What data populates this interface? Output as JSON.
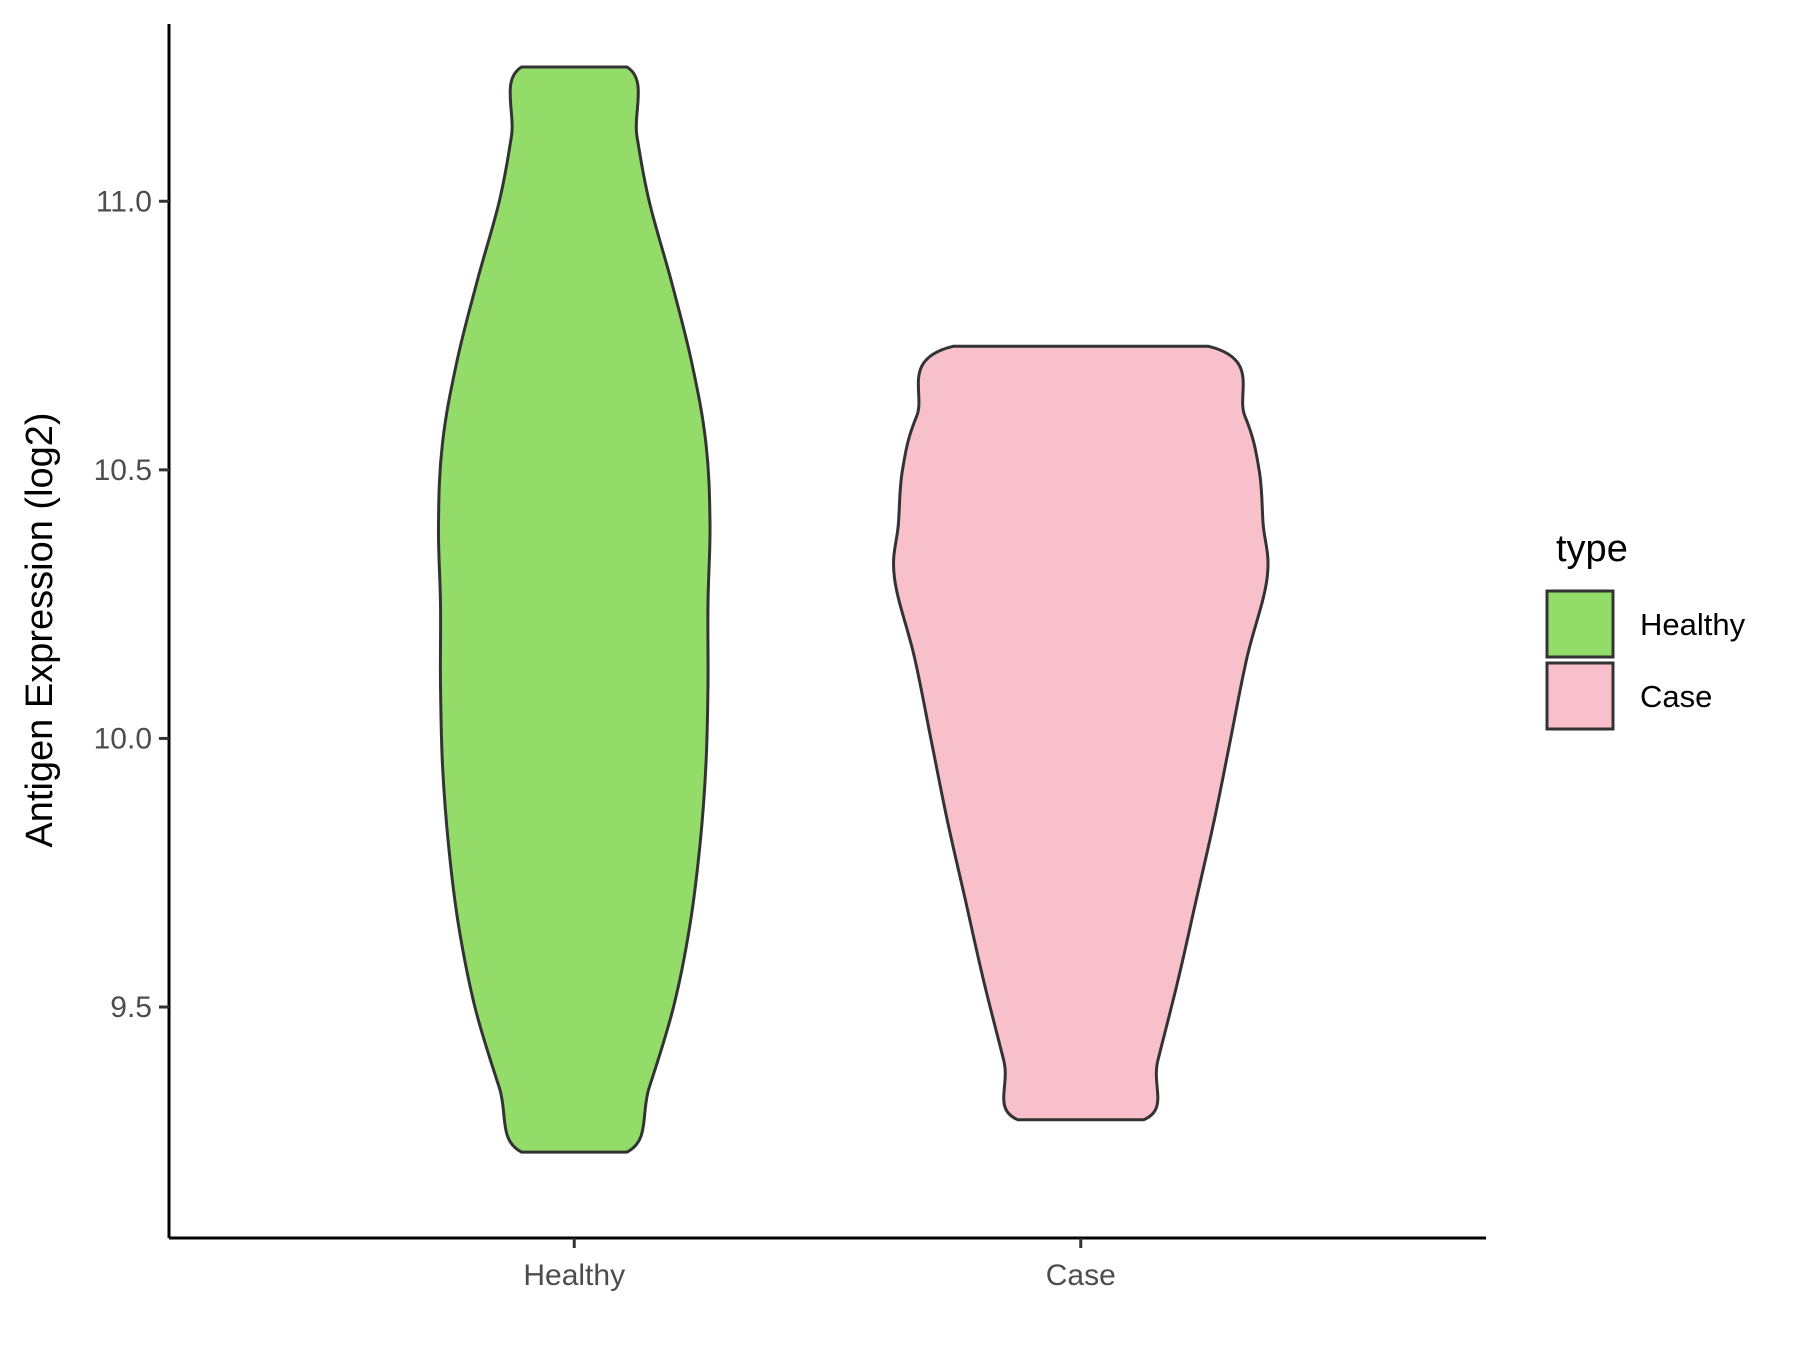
{
  "chart_data": {
    "type": "violin",
    "title": "",
    "xlabel": "",
    "ylabel": "Antigen Expression (log2)",
    "categories": [
      "Healthy",
      "Case"
    ],
    "y_ticks": [
      9.5,
      10.0,
      10.5,
      11.0
    ],
    "y_tick_labels": [
      "9.5",
      "10.0",
      "10.5",
      "11.0"
    ],
    "ylim": [
      9.07,
      11.33
    ],
    "grid": false,
    "legend": {
      "title": "type",
      "position": "right",
      "entries": [
        {
          "label": "Healthy",
          "color": "#93dc6a"
        },
        {
          "label": "Case",
          "color": "#f8c0cb"
        }
      ]
    },
    "series": [
      {
        "category": "Healthy",
        "color": "#93dc6a",
        "min": 9.23,
        "max": 11.25,
        "density_profile": [
          [
            9.23,
            0.26
          ],
          [
            9.35,
            0.37
          ],
          [
            9.5,
            0.49
          ],
          [
            9.65,
            0.57
          ],
          [
            9.8,
            0.62
          ],
          [
            9.95,
            0.65
          ],
          [
            10.1,
            0.66
          ],
          [
            10.25,
            0.66
          ],
          [
            10.4,
            0.67
          ],
          [
            10.55,
            0.65
          ],
          [
            10.7,
            0.58
          ],
          [
            10.85,
            0.48
          ],
          [
            11.0,
            0.37
          ],
          [
            11.12,
            0.31
          ],
          [
            11.25,
            0.26
          ]
        ]
      },
      {
        "category": "Case",
        "color": "#f8c0cb",
        "min": 9.29,
        "max": 10.73,
        "density_profile": [
          [
            9.29,
            0.31
          ],
          [
            9.4,
            0.38
          ],
          [
            9.55,
            0.48
          ],
          [
            9.7,
            0.57
          ],
          [
            9.85,
            0.66
          ],
          [
            10.0,
            0.74
          ],
          [
            10.15,
            0.82
          ],
          [
            10.3,
            0.92
          ],
          [
            10.4,
            0.9
          ],
          [
            10.5,
            0.88
          ],
          [
            10.6,
            0.81
          ],
          [
            10.73,
            0.63
          ]
        ]
      }
    ]
  }
}
